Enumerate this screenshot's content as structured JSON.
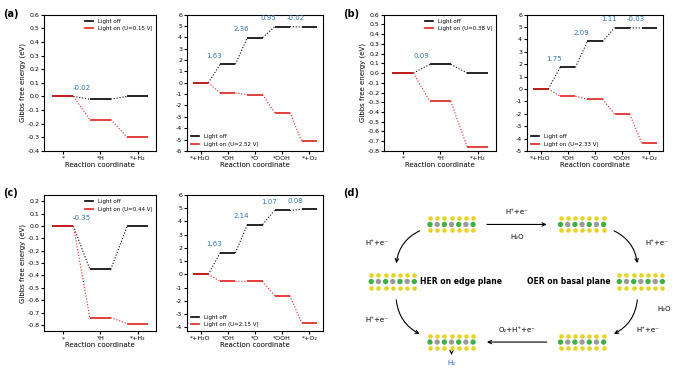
{
  "panels": [
    "(a)",
    "(b)",
    "(c)",
    "(d)"
  ],
  "chart_data": [
    {
      "type": "step",
      "categories": [
        "*",
        "*H",
        "*+H₂"
      ],
      "xlabel": "Reaction coordinate",
      "ylabel": "Gibbs free energy (eV)",
      "series": [
        {
          "name": "Light off",
          "color": "#000000",
          "values": [
            0.0,
            -0.02,
            0.0
          ],
          "line_style": "dotted"
        },
        {
          "name": "Light on (U=0.15 V)",
          "color": "#e0201b",
          "values": [
            0.0,
            -0.17,
            -0.3
          ],
          "line_style": "dotted"
        }
      ],
      "ylim": [
        -0.4,
        0.6
      ],
      "yticks": [
        -0.4,
        -0.3,
        -0.2,
        -0.1,
        0.0,
        0.1,
        0.2,
        0.3,
        0.4,
        0.5,
        0.6
      ],
      "legend": "upper right",
      "annotations": [
        "-0.02"
      ]
    },
    {
      "type": "step",
      "categories": [
        "*+H₂O",
        "*OH",
        "*O",
        "*OOH",
        "*+O₂"
      ],
      "xlabel": "Reaction coordinate",
      "series": [
        {
          "name": "Light off",
          "color": "#000000",
          "values": [
            0.0,
            1.63,
            3.99,
            4.94,
            4.92
          ],
          "line_style": "dotted"
        },
        {
          "name": "Light on (U=2.52 V)",
          "color": "#e0201b",
          "values": [
            0.0,
            -0.89,
            -1.05,
            -2.62,
            -5.16
          ],
          "line_style": "dotted"
        }
      ],
      "ylim": [
        -6,
        6
      ],
      "yticks": [
        -6,
        -5,
        -4,
        -3,
        -2,
        -1,
        0,
        1,
        2,
        3,
        4,
        5,
        6
      ],
      "legend": "lower left",
      "annotations": [
        "1.63",
        "2.36",
        "0.95",
        "-0.02"
      ]
    },
    {
      "type": "step",
      "categories": [
        "*",
        "*H",
        "*+H₂"
      ],
      "xlabel": "Reaction coordinate",
      "ylabel": "Gibbs free energy (eV)",
      "series": [
        {
          "name": "Light off",
          "color": "#000000",
          "values": [
            0.0,
            0.09,
            0.0
          ],
          "line_style": "dotted"
        },
        {
          "name": "Light on (U=0.38 V)",
          "color": "#e0201b",
          "values": [
            0.0,
            -0.29,
            -0.76
          ],
          "line_style": "dotted"
        }
      ],
      "ylim": [
        -0.8,
        0.6
      ],
      "yticks": [
        -0.8,
        -0.7,
        -0.6,
        -0.5,
        -0.4,
        -0.3,
        -0.2,
        -0.1,
        0.0,
        0.1,
        0.2,
        0.3,
        0.4,
        0.5,
        0.6
      ],
      "legend": "upper right",
      "annotations": [
        "0.09"
      ]
    },
    {
      "type": "step",
      "categories": [
        "*+H₂O",
        "*OH",
        "*O",
        "*OOH",
        "*+O₂"
      ],
      "xlabel": "Reaction coordinate",
      "series": [
        {
          "name": "Light off",
          "color": "#000000",
          "values": [
            0.0,
            1.75,
            3.84,
            4.95,
            4.92
          ],
          "line_style": "dotted"
        },
        {
          "name": "Light on (U=2.33 V)",
          "color": "#e0201b",
          "values": [
            0.0,
            -0.58,
            -0.82,
            -2.04,
            -4.4
          ],
          "line_style": "dotted"
        }
      ],
      "ylim": [
        -5,
        6
      ],
      "yticks": [
        -5,
        -4,
        -3,
        -2,
        -1,
        0,
        1,
        2,
        3,
        4,
        5,
        6
      ],
      "legend": "lower left",
      "annotations": [
        "1.75",
        "2.09",
        "1.11",
        "-0.03"
      ]
    },
    {
      "type": "step",
      "categories": [
        "*",
        "*H",
        "*+H₂"
      ],
      "xlabel": "Reaction coordinate",
      "ylabel": "Gibbs free energy (eV)",
      "series": [
        {
          "name": "Light off",
          "color": "#000000",
          "values": [
            0.0,
            -0.35,
            0.0
          ],
          "line_style": "dotted"
        },
        {
          "name": "Light on (U=0.44 V)",
          "color": "#e0201b",
          "values": [
            0.0,
            -0.74,
            -0.79
          ],
          "line_style": "dotted"
        }
      ],
      "ylim": [
        -0.85,
        0.25
      ],
      "yticks": [
        -0.8,
        -0.7,
        -0.6,
        -0.5,
        -0.4,
        -0.3,
        -0.2,
        -0.1,
        0.0,
        0.1,
        0.2
      ],
      "legend": "upper right",
      "annotations": [
        "-0.35"
      ]
    },
    {
      "type": "step",
      "categories": [
        "*+H₂O",
        "*OH",
        "*O",
        "*OOH",
        "*+O₂"
      ],
      "xlabel": "Reaction coordinate",
      "series": [
        {
          "name": "Light off",
          "color": "#000000",
          "values": [
            0.0,
            1.63,
            3.77,
            4.84,
            4.92
          ],
          "line_style": "dotted"
        },
        {
          "name": "Light on (U=2.15 V)",
          "color": "#e0201b",
          "values": [
            0.0,
            -0.52,
            -0.53,
            -1.61,
            -3.68
          ],
          "line_style": "dotted"
        }
      ],
      "ylim": [
        -4.3,
        6
      ],
      "yticks": [
        -4,
        -3,
        -2,
        -1,
        0,
        1,
        2,
        3,
        4,
        5,
        6
      ],
      "legend": "lower left",
      "annotations": [
        "1.63",
        "2.14",
        "1.07",
        "0.08"
      ]
    }
  ],
  "diagram": {
    "center_texts": [
      "HER on edge plane",
      "OER on basal plane"
    ],
    "arrow_labels": [
      "H⁺+e⁻",
      "H₂O",
      "H⁺+e⁻",
      "H₂O",
      "H⁺+e⁻",
      "O₂+H⁺+e⁻",
      "H⁺+e⁻",
      "H⁺+e⁻",
      "H₂"
    ]
  }
}
